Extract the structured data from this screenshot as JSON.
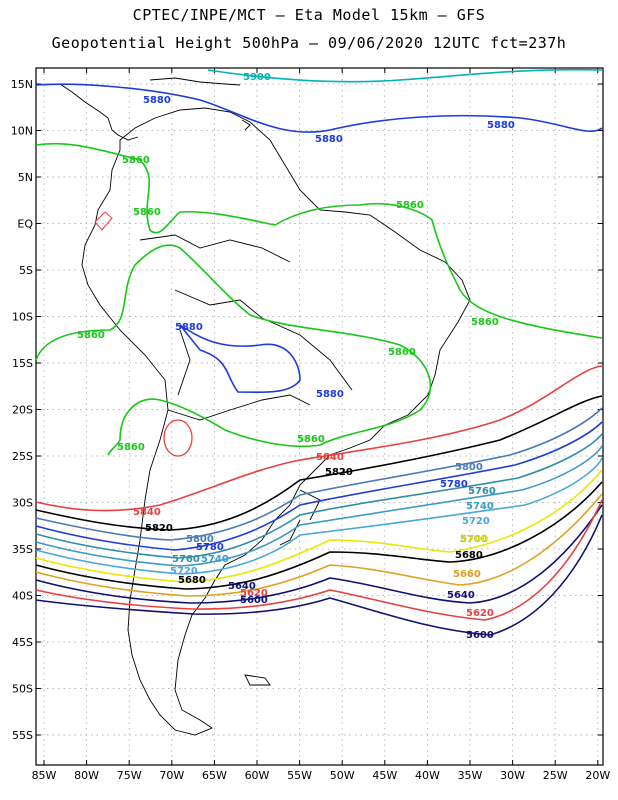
{
  "header": {
    "line1": "CPTEC/INPE/MCT –  Eta Model 15km – GFS",
    "line2": "Geopotential Height 500hPa – 09/06/2020 12UTC fct=237h"
  },
  "axes": {
    "lat_labels": [
      "15N",
      "10N",
      "5N",
      "EQ",
      "5S",
      "10S",
      "15S",
      "20S",
      "25S",
      "30S",
      "35S",
      "40S",
      "45S",
      "50S",
      "55S"
    ],
    "lon_labels": [
      "85W",
      "80W",
      "75W",
      "70W",
      "65W",
      "60W",
      "55W",
      "50W",
      "45W",
      "40W",
      "35W",
      "30W",
      "25W",
      "20W"
    ]
  },
  "contours": [
    {
      "value": "5900",
      "color": "#00b4b4"
    },
    {
      "value": "5880",
      "color": "#1e3cdc"
    },
    {
      "value": "5860",
      "color": "#18c818"
    },
    {
      "value": "5840",
      "color": "#e84040"
    },
    {
      "value": "5820",
      "color": "#000000"
    },
    {
      "value": "5800",
      "color": "#4a7ab8"
    },
    {
      "value": "5780",
      "color": "#1e3cdc"
    },
    {
      "value": "5760",
      "color": "#2f8fa8"
    },
    {
      "value": "5740",
      "color": "#3a9ac8"
    },
    {
      "value": "5720",
      "color": "#4aa8d8"
    },
    {
      "value": "5700",
      "color": "#e8e800"
    },
    {
      "value": "5680",
      "color": "#000000"
    },
    {
      "value": "5660",
      "color": "#e0a020"
    },
    {
      "value": "5640",
      "color": "#101070"
    },
    {
      "value": "5620",
      "color": "#e84040"
    },
    {
      "value": "5600",
      "color": "#101070"
    }
  ]
}
